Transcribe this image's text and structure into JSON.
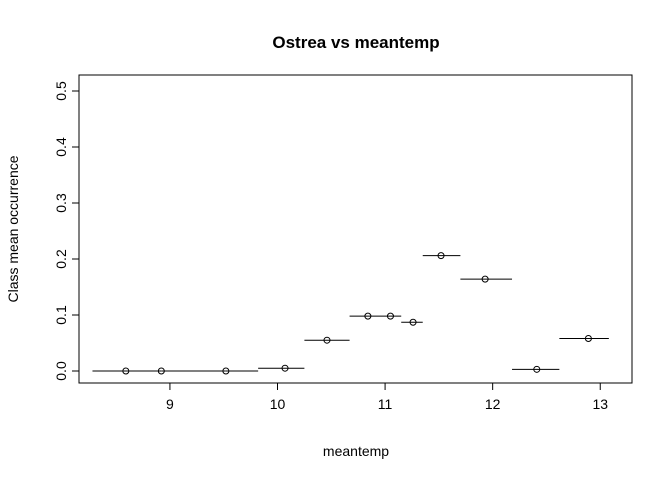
{
  "chart_data": {
    "type": "scatter",
    "title": "Ostrea vs meantemp",
    "xlabel": "meantemp",
    "ylabel": "Class mean occurrence",
    "xlim": [
      8.35,
      13.1
    ],
    "ylim": [
      0,
      0.5
    ],
    "xticks": [
      9,
      10,
      11,
      12,
      13
    ],
    "yticks": [
      0.0,
      0.1,
      0.2,
      0.3,
      0.4,
      0.5
    ],
    "ytick_labels": [
      "0.0",
      "0.1",
      "0.2",
      "0.3",
      "0.4",
      "0.5"
    ],
    "grid": false,
    "series": [
      {
        "points": [
          {
            "x": 8.59,
            "y": 0.0,
            "xmin": 8.28,
            "xmax": 8.92
          },
          {
            "x": 8.92,
            "y": 0.0,
            "xmin": 8.92,
            "xmax": 9.52
          },
          {
            "x": 9.52,
            "y": 0.0,
            "xmin": 9.52,
            "xmax": 9.82
          },
          {
            "x": 10.07,
            "y": 0.005,
            "xmin": 9.82,
            "xmax": 10.25
          },
          {
            "x": 10.46,
            "y": 0.055,
            "xmin": 10.25,
            "xmax": 10.67
          },
          {
            "x": 10.84,
            "y": 0.098,
            "xmin": 10.67,
            "xmax": 11.05
          },
          {
            "x": 11.05,
            "y": 0.098,
            "xmin": 11.05,
            "xmax": 11.15
          },
          {
            "x": 11.26,
            "y": 0.087,
            "xmin": 11.15,
            "xmax": 11.35
          },
          {
            "x": 11.52,
            "y": 0.206,
            "xmin": 11.35,
            "xmax": 11.7
          },
          {
            "x": 11.93,
            "y": 0.164,
            "xmin": 11.7,
            "xmax": 12.18
          },
          {
            "x": 12.41,
            "y": 0.003,
            "xmin": 12.18,
            "xmax": 12.62
          },
          {
            "x": 12.89,
            "y": 0.058,
            "xmin": 12.62,
            "xmax": 13.08
          }
        ]
      }
    ]
  }
}
